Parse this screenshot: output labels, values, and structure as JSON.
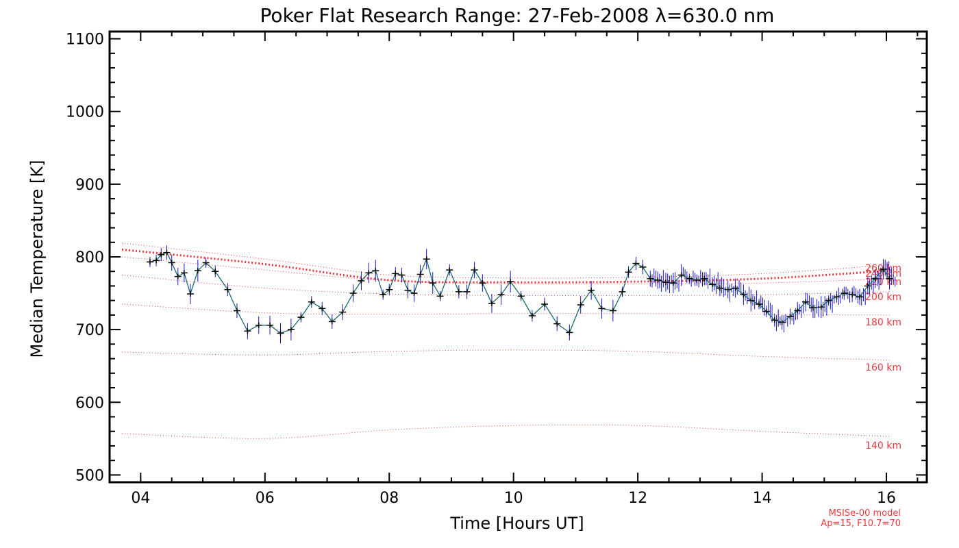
{
  "chart_data": {
    "type": "line",
    "title": "Poker Flat Research Range: 27-Feb-2008 λ=630.0 nm",
    "xlabel": "Time [Hours UT]",
    "ylabel": "Median Temperature [K]",
    "xlim": [
      3.5,
      16.65
    ],
    "ylim": [
      490,
      1110
    ],
    "x_ticks": [
      4,
      6,
      8,
      10,
      12,
      14,
      16
    ],
    "x_tick_labels": [
      "04",
      "06",
      "08",
      "10",
      "12",
      "14",
      "16"
    ],
    "y_ticks": [
      500,
      600,
      700,
      800,
      900,
      1000,
      1100
    ],
    "y_tick_labels": [
      "500",
      "600",
      "700",
      "800",
      "900",
      "1000",
      "1100"
    ],
    "grid": false,
    "legend": "none",
    "colors": {
      "data_line": "#000000",
      "error_bars": "#1414d2",
      "connector": "#1a6a6a",
      "model": "#e8383d"
    },
    "series": [
      {
        "x": [
          4.15,
          4.25,
          4.33,
          4.42,
          4.5,
          4.6,
          4.7,
          4.8,
          4.92,
          5.05,
          5.2,
          5.4,
          5.55,
          5.72,
          5.9,
          6.08,
          6.25,
          6.42,
          6.58,
          6.75,
          6.92,
          7.08,
          7.25,
          7.42,
          7.55,
          7.67,
          7.78,
          7.9,
          8.0,
          8.1,
          8.2,
          8.3,
          8.4,
          8.5,
          8.6,
          8.7,
          8.82,
          8.97,
          9.12,
          9.25,
          9.37,
          9.5,
          9.65,
          9.8,
          9.95,
          10.12,
          10.3,
          10.5,
          10.7,
          10.9,
          11.08,
          11.25,
          11.42,
          11.6,
          11.75,
          11.85,
          11.97,
          12.08,
          12.2,
          12.32,
          12.45,
          12.57,
          12.7,
          12.83,
          12.95,
          13.07,
          13.2,
          13.32,
          13.45,
          13.57,
          13.7,
          13.82,
          13.95,
          14.07,
          14.2,
          14.32,
          14.45,
          14.57,
          14.7,
          14.82,
          14.95,
          15.07,
          15.2,
          15.32,
          15.45,
          15.57,
          15.7,
          15.82,
          15.95,
          16.05
        ],
        "y": [
          793,
          795,
          803,
          806,
          792,
          773,
          778,
          749,
          781,
          792,
          780,
          755,
          726,
          698,
          706,
          706,
          695,
          700,
          717,
          738,
          729,
          711,
          724,
          750,
          767,
          778,
          781,
          748,
          755,
          777,
          775,
          754,
          750,
          776,
          797,
          764,
          746,
          782,
          752,
          752,
          782,
          764,
          736,
          748,
          766,
          746,
          719,
          735,
          708,
          696,
          734,
          754,
          729,
          726,
          752,
          779,
          791,
          786,
          770,
          768,
          765,
          764,
          775,
          770,
          768,
          770,
          762,
          757,
          755,
          757,
          748,
          740,
          735,
          725,
          713,
          710,
          718,
          726,
          738,
          730,
          731,
          740,
          745,
          750,
          748,
          745,
          760,
          770,
          783,
          770
        ]
      }
    ],
    "model_curves": [
      {
        "label": "140 km",
        "x": [
          3.7,
          6,
          8,
          10,
          12,
          14,
          16.05
        ],
        "y": [
          557,
          550,
          562,
          568,
          568,
          560,
          553
        ]
      },
      {
        "label": "160 km",
        "x": [
          3.7,
          6,
          8,
          10,
          12,
          14,
          16.05
        ],
        "y": [
          669,
          665,
          670,
          672,
          670,
          663,
          658
        ]
      },
      {
        "label": "180 km",
        "x": [
          3.7,
          6,
          8,
          10,
          12,
          14,
          16.05
        ],
        "y": [
          735,
          723,
          721,
          722,
          722,
          721,
          720
        ]
      },
      {
        "label": "200 km",
        "x": [
          3.7,
          6,
          8,
          10,
          12,
          14,
          16.05
        ],
        "y": [
          775,
          757,
          749,
          747,
          747,
          748,
          752
        ]
      },
      {
        "label": "220 km",
        "x": [
          3.7,
          6,
          8,
          10,
          12,
          14,
          16.05
        ],
        "y": [
          800,
          782,
          767,
          763,
          763,
          764,
          770
        ]
      },
      {
        "label": "240 km",
        "x": [
          3.7,
          6,
          8,
          10,
          12,
          14,
          16.05
        ],
        "y": [
          810,
          790,
          768,
          765,
          766,
          770,
          781
        ]
      },
      {
        "label": "260 km",
        "x": [
          3.7,
          6,
          8,
          10,
          12,
          14,
          16.05
        ],
        "y": [
          819,
          797,
          775,
          771,
          772,
          777,
          789
        ]
      }
    ],
    "model_labels": [
      "140 km",
      "160 km",
      "180 km",
      "200 km",
      "220 km",
      "240 km",
      "260 km"
    ],
    "model_note": [
      "MSISe-00 model",
      "Ap=15, F10.7=70"
    ]
  }
}
